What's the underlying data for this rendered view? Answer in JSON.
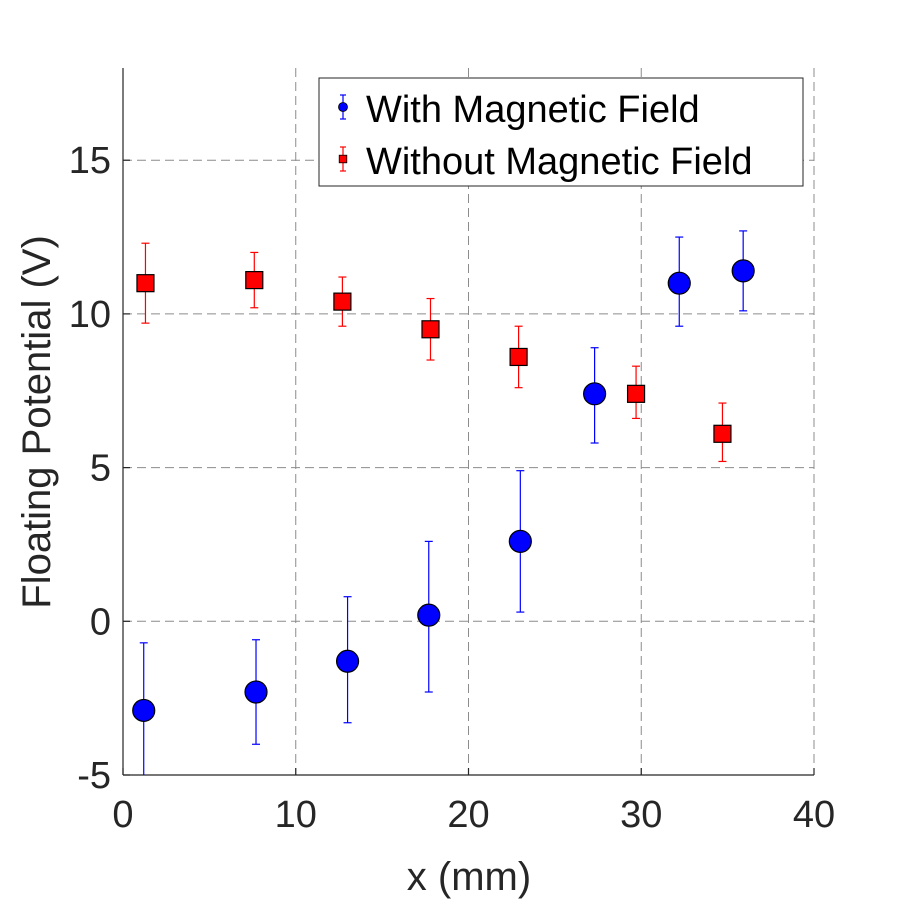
{
  "chart_data": {
    "type": "scatter",
    "title": "",
    "xlabel": "x (mm)",
    "ylabel": "Floating Potential (V)",
    "xlim": [
      0,
      40
    ],
    "ylim": [
      -5,
      18
    ],
    "xticks": [
      0,
      10,
      20,
      30,
      40
    ],
    "yticks": [
      -5,
      0,
      5,
      10,
      15
    ],
    "xtick_labels": [
      "0",
      "10",
      "20",
      "30",
      "40"
    ],
    "ytick_labels": [
      "-5",
      "0",
      "5",
      "10",
      "15"
    ],
    "grid": true,
    "legend_position": "top-right",
    "series": [
      {
        "name": "With Magnetic Field",
        "marker": "circle",
        "color": "#0000ff",
        "x": [
          1.2,
          7.7,
          13.0,
          17.7,
          23.0,
          27.3,
          32.2,
          35.9
        ],
        "y": [
          -2.9,
          -2.3,
          -1.3,
          0.2,
          2.6,
          7.4,
          11.0,
          11.4
        ],
        "err_low": [
          2.2,
          1.7,
          2.0,
          2.5,
          2.3,
          1.6,
          1.4,
          1.3
        ],
        "err_high": [
          2.2,
          1.7,
          2.1,
          2.4,
          2.3,
          1.5,
          1.5,
          1.3
        ]
      },
      {
        "name": "Without Magnetic Field",
        "marker": "square",
        "color": "#ff0000",
        "x": [
          1.3,
          7.6,
          12.7,
          17.8,
          22.9,
          29.7,
          34.7
        ],
        "y": [
          11.0,
          11.1,
          10.4,
          9.5,
          8.6,
          7.4,
          6.1
        ],
        "err_low": [
          1.3,
          0.9,
          0.8,
          1.0,
          1.0,
          0.8,
          0.9
        ],
        "err_high": [
          1.3,
          0.9,
          0.8,
          1.0,
          1.0,
          0.9,
          1.0
        ]
      }
    ]
  }
}
